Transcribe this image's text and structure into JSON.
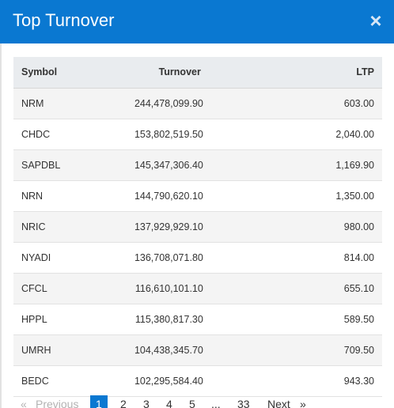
{
  "modal": {
    "title": "Top Turnover",
    "close_glyph": "×"
  },
  "table": {
    "headers": {
      "symbol": "Symbol",
      "turnover": "Turnover",
      "ltp": "LTP"
    },
    "rows": [
      {
        "symbol": "NRM",
        "turnover": "244,478,099.90",
        "ltp": "603.00"
      },
      {
        "symbol": "CHDC",
        "turnover": "153,802,519.50",
        "ltp": "2,040.00"
      },
      {
        "symbol": "SAPDBL",
        "turnover": "145,347,306.40",
        "ltp": "1,169.90"
      },
      {
        "symbol": "NRN",
        "turnover": "144,790,620.10",
        "ltp": "1,350.00"
      },
      {
        "symbol": "NRIC",
        "turnover": "137,929,929.10",
        "ltp": "980.00"
      },
      {
        "symbol": "NYADI",
        "turnover": "136,708,071.80",
        "ltp": "814.00"
      },
      {
        "symbol": "CFCL",
        "turnover": "116,610,101.10",
        "ltp": "655.10"
      },
      {
        "symbol": "HPPL",
        "turnover": "115,380,817.30",
        "ltp": "589.50"
      },
      {
        "symbol": "UMRH",
        "turnover": "104,438,345.70",
        "ltp": "709.50"
      },
      {
        "symbol": "BEDC",
        "turnover": "102,295,584.40",
        "ltp": "943.30"
      }
    ]
  },
  "pagination": {
    "first_glyph": "«",
    "previous": "Previous",
    "pages": [
      "1",
      "2",
      "3",
      "4",
      "5"
    ],
    "ellipsis": "...",
    "last_page": "33",
    "next": "Next",
    "last_glyph": "»",
    "current": "1"
  },
  "colors": {
    "header_bg": "#0a78d1",
    "active_page_bg": "#0a78d1"
  }
}
